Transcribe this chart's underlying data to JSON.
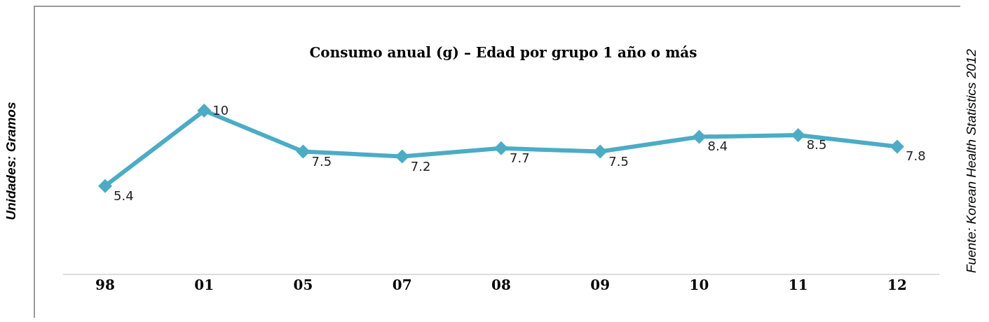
{
  "chart_data": {
    "type": "line",
    "title": "Consumo anual (g) – Edad por grupo 1 año o más",
    "ylabel": "Unidades: Gramos",
    "annotations": [
      "Fuente: Korean Health Statistics 2012"
    ],
    "categories": [
      "98",
      "01",
      "05",
      "07",
      "08",
      "09",
      "10",
      "11",
      "12"
    ],
    "series": [
      {
        "color": "#4bacc6",
        "values": [
          5.4,
          10,
          7.5,
          7.2,
          7.7,
          7.5,
          8.4,
          8.5,
          7.8
        ]
      }
    ],
    "data_labels": true,
    "marker": "diamond",
    "tick_labels": "x"
  }
}
